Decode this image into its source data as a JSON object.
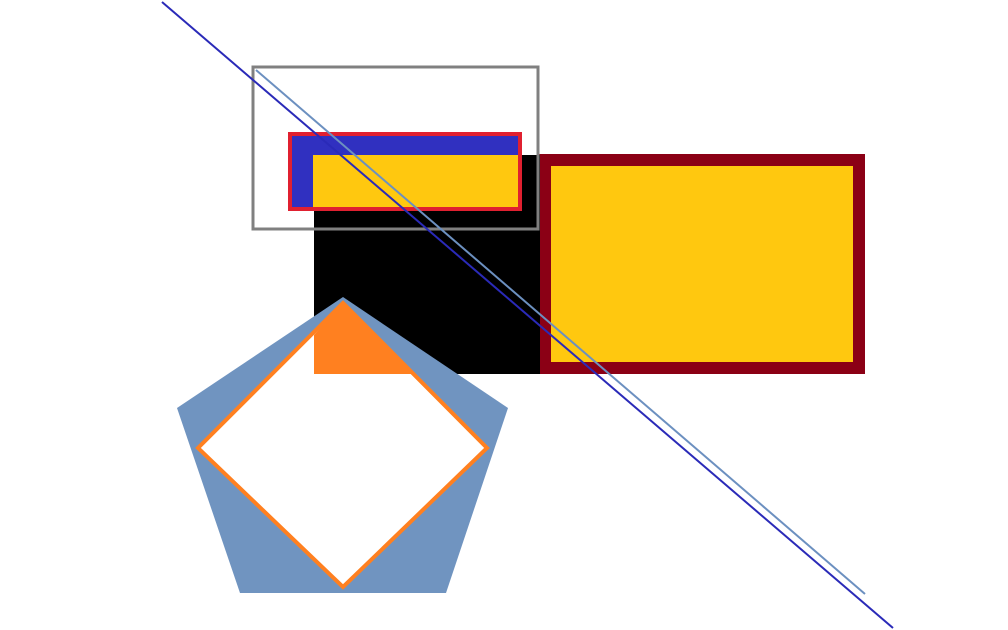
{
  "canvas": {
    "background": "#ffffff"
  },
  "shapes": {
    "blue_red_bar": {
      "fill": "#3030c0",
      "stroke": "#e02030"
    },
    "dark_red_frame": {
      "stroke": "#8b0015",
      "fill": "#ffc80f"
    },
    "black_block": {
      "fill": "#000000"
    },
    "yellow_inset": {
      "fill": "#ffc80f"
    },
    "gray_frame": {
      "stroke": "#808080"
    },
    "pentagon": {
      "fill": "#7094c0"
    },
    "orange_diamond": {
      "stroke": "#ff8020",
      "fill": "#ffffff"
    },
    "orange_triangle": {
      "fill": "#ff8020"
    },
    "steel_line": {
      "stroke": "#6c90c0"
    },
    "navy_line": {
      "stroke": "#2a2ab8"
    }
  }
}
